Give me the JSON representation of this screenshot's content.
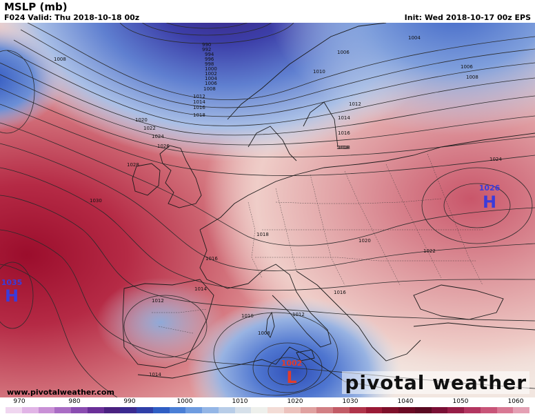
{
  "header": {
    "title": "MSLP (mb)",
    "valid": "F024 Valid: Thu 2018-10-18 00z",
    "init": "Init: Wed 2018-10-17 00z EPS"
  },
  "footer": {
    "site": "www.pivotalweather.com",
    "brand": "pivotal weather"
  },
  "isobar_labels": [
    "990",
    "992",
    "994",
    "996",
    "998",
    "1000",
    "1002",
    "1004",
    "1006",
    "1008",
    "1008",
    "1006",
    "1010",
    "1012",
    "1014",
    "1016",
    "1018",
    "1020",
    "1022",
    "1024",
    "1026",
    "1028",
    "1030",
    "1018",
    "1016",
    "1014",
    "1012",
    "1010",
    "1008",
    "1018",
    "1020",
    "1016",
    "1022",
    "1024",
    "1004",
    "1006",
    "1008",
    "1012",
    "1014",
    "1016",
    "1018",
    "1014",
    "1012"
  ],
  "pressure_centers": [
    {
      "type": "H",
      "value": "1026",
      "color": "#3b3bdb"
    },
    {
      "type": "H",
      "value": "1035",
      "color": "#3b3bdb"
    },
    {
      "type": "L",
      "value": "1002",
      "color": "#e03c2c"
    }
  ],
  "colorbar": {
    "ticks": [
      "970",
      "980",
      "990",
      "1000",
      "1010",
      "1020",
      "1030",
      "1040",
      "1050",
      "1060"
    ],
    "colors": [
      "#f0d6f0",
      "#e1b4e6",
      "#c990d6",
      "#a96cc4",
      "#8a4cb0",
      "#6a2f98",
      "#4a2180",
      "#3a2a90",
      "#2f3fa8",
      "#2f5ec4",
      "#4a7fd6",
      "#6e9ce0",
      "#94b6e6",
      "#b8cde8",
      "#d6e0ea",
      "#eef0ec",
      "#f3dcd6",
      "#ecc2bd",
      "#e0a1a0",
      "#d27f84",
      "#c25b66",
      "#b0344a",
      "#9a1a36",
      "#7e0f2a",
      "#6b0a24",
      "#5a0a22",
      "#790f35",
      "#961d47",
      "#b23560",
      "#c85478",
      "#d87894",
      "#e4a0b4"
    ]
  },
  "legend_colors": {
    "high": "#3b3bdb",
    "low": "#e03c2c",
    "high_pressure_core": "#a5102f",
    "low_pressure_core": "#2c3f9e"
  }
}
